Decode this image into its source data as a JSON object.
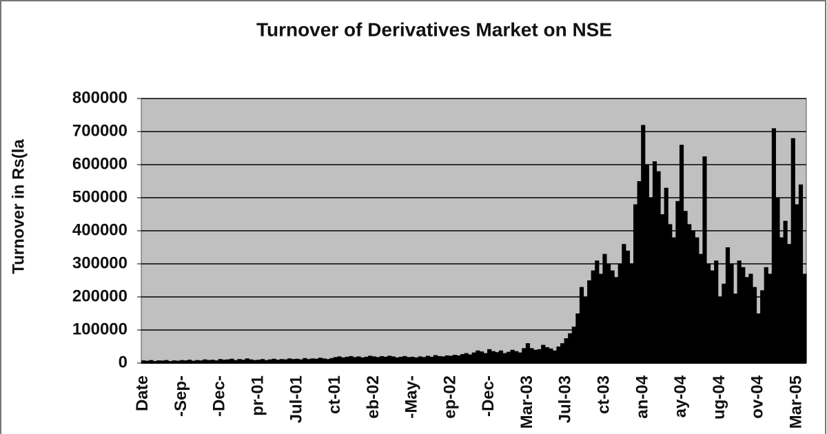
{
  "chart_data": {
    "type": "bar",
    "title": "Turnover of Derivatives Market on NSE",
    "y_label": "Turnover in Rs(la",
    "categories": [
      "Date",
      null,
      null,
      null,
      null,
      null,
      null,
      null,
      null,
      null,
      "-Sep-",
      null,
      null,
      null,
      null,
      null,
      null,
      null,
      null,
      null,
      "-Dec-",
      null,
      null,
      null,
      null,
      null,
      null,
      null,
      null,
      null,
      "pr-01",
      null,
      null,
      null,
      null,
      null,
      null,
      null,
      null,
      null,
      "Jul-01",
      null,
      null,
      null,
      null,
      null,
      null,
      null,
      null,
      null,
      "ct-01",
      null,
      null,
      null,
      null,
      null,
      null,
      null,
      null,
      null,
      "eb-02",
      null,
      null,
      null,
      null,
      null,
      null,
      null,
      null,
      null,
      "-May-",
      null,
      null,
      null,
      null,
      null,
      null,
      null,
      null,
      null,
      "ep-02",
      null,
      null,
      null,
      null,
      null,
      null,
      null,
      null,
      null,
      "-Dec-",
      null,
      null,
      null,
      null,
      null,
      null,
      null,
      null,
      null,
      "Mar-03",
      null,
      null,
      null,
      null,
      null,
      null,
      null,
      null,
      null,
      "Jul-03",
      null,
      null,
      null,
      null,
      null,
      null,
      null,
      null,
      null,
      "ct-03",
      null,
      null,
      null,
      null,
      null,
      null,
      null,
      null,
      null,
      "an-04",
      null,
      null,
      null,
      null,
      null,
      null,
      null,
      null,
      null,
      "ay-04",
      null,
      null,
      null,
      null,
      null,
      null,
      null,
      null,
      null,
      "ug-04",
      null,
      null,
      null,
      null,
      null,
      null,
      null,
      null,
      null,
      "ov-04",
      null,
      null,
      null,
      null,
      null,
      null,
      null,
      null,
      null,
      "Mar-05",
      null,
      null
    ],
    "values": [
      8000,
      7000,
      9000,
      6000,
      8000,
      7500,
      9000,
      6000,
      8000,
      7000,
      9000,
      8000,
      10000,
      7000,
      9000,
      8000,
      11000,
      9000,
      10000,
      8000,
      12000,
      10000,
      11000,
      13000,
      9000,
      12000,
      10000,
      14000,
      11000,
      9000,
      10000,
      12000,
      9000,
      11000,
      13000,
      10000,
      12000,
      11000,
      14000,
      12000,
      13000,
      11000,
      15000,
      12000,
      14000,
      13000,
      16000,
      14000,
      12000,
      15000,
      18000,
      20000,
      17000,
      19000,
      21000,
      18000,
      20000,
      17000,
      19000,
      22000,
      20000,
      18000,
      21000,
      19000,
      22000,
      20000,
      17000,
      19000,
      21000,
      18000,
      19000,
      17000,
      20000,
      18000,
      22000,
      19000,
      24000,
      21000,
      20000,
      23000,
      22000,
      25000,
      23000,
      27000,
      30000,
      26000,
      32000,
      38000,
      35000,
      30000,
      42000,
      36000,
      33000,
      38000,
      30000,
      34000,
      40000,
      36000,
      32000,
      45000,
      60000,
      45000,
      40000,
      42000,
      55000,
      48000,
      44000,
      38000,
      50000,
      60000,
      75000,
      90000,
      110000,
      150000,
      230000,
      200000,
      250000,
      280000,
      310000,
      270000,
      330000,
      300000,
      280000,
      260000,
      300000,
      360000,
      340000,
      300000,
      480000,
      550000,
      720000,
      600000,
      500000,
      610000,
      580000,
      450000,
      530000,
      420000,
      380000,
      490000,
      660000,
      460000,
      420000,
      400000,
      380000,
      330000,
      625000,
      300000,
      280000,
      310000,
      200000,
      240000,
      350000,
      300000,
      210000,
      310000,
      290000,
      260000,
      270000,
      230000,
      150000,
      220000,
      290000,
      270000,
      710000,
      500000,
      380000,
      430000,
      360000,
      680000,
      480000,
      540000,
      270000
    ],
    "color": "#000000",
    "ylim": [
      0,
      800000
    ],
    "yticks": [
      0,
      100000,
      200000,
      300000,
      400000,
      500000,
      600000,
      700000,
      800000
    ],
    "grid": true,
    "plot_background": "#c0c0c0"
  }
}
